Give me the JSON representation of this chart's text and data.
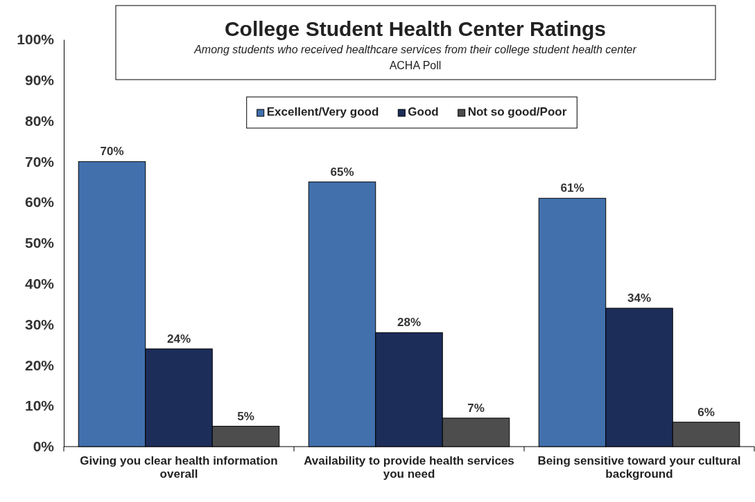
{
  "chart_data": {
    "type": "bar",
    "title": "College Student Health Center Ratings",
    "subtitle": "Among students who received healthcare services from their college student health center",
    "annotations": [
      "ACHA Poll"
    ],
    "categories": [
      "Giving you clear health information overall",
      "Availability to provide health services you need",
      "Being sensitive toward your cultural background"
    ],
    "series": [
      {
        "name": "Excellent/Very good",
        "color": "#4170ad",
        "values": [
          70,
          65,
          61
        ],
        "value_labels": [
          "70%",
          "65%",
          "61%"
        ]
      },
      {
        "name": "Good",
        "color": "#1c2d5a",
        "values": [
          24,
          28,
          34
        ],
        "value_labels": [
          "24%",
          "28%",
          "34%"
        ]
      },
      {
        "name": "Not so good/Poor",
        "color": "#4d4d4d",
        "values": [
          5,
          7,
          6
        ],
        "value_labels": [
          "5%",
          "7%",
          "6%"
        ]
      }
    ],
    "ylim": [
      0,
      100
    ],
    "yticks": [
      {
        "value": 0,
        "label": "0%"
      },
      {
        "value": 10,
        "label": "10%"
      },
      {
        "value": 20,
        "label": "20%"
      },
      {
        "value": 30,
        "label": "30%"
      },
      {
        "value": 40,
        "label": "40%"
      },
      {
        "value": 50,
        "label": "50%"
      },
      {
        "value": 60,
        "label": "60%"
      },
      {
        "value": 70,
        "label": "70%"
      },
      {
        "value": 80,
        "label": "80%"
      },
      {
        "value": 90,
        "label": "90%"
      },
      {
        "value": 100,
        "label": "100%"
      }
    ],
    "grid": false,
    "legend": "top"
  }
}
